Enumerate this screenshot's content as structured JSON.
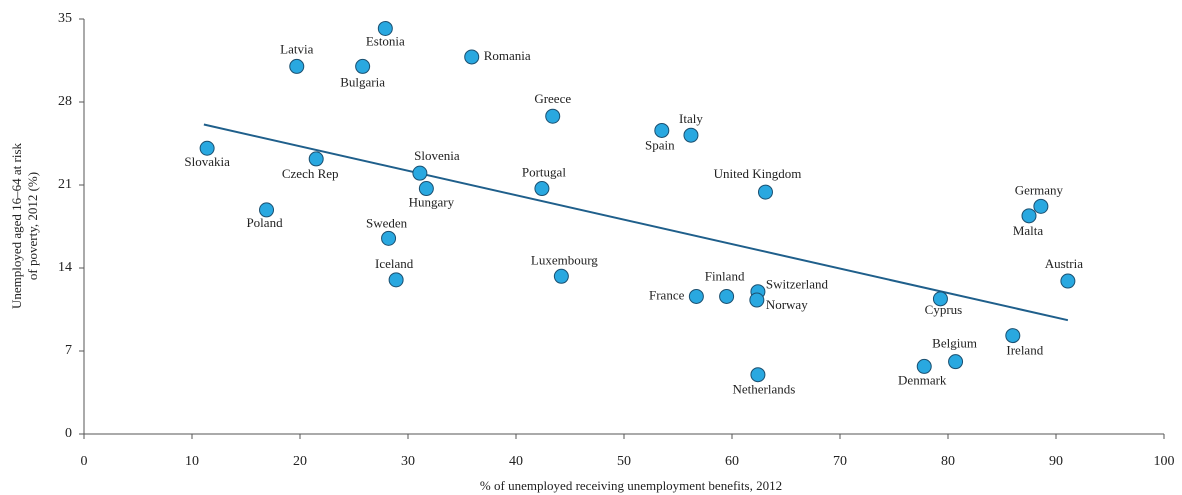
{
  "chart_data": {
    "type": "scatter",
    "xlabel": "% of unemployed receiving unemployment benefits, 2012",
    "ylabel": [
      "Unemployed aged 16–64 at risk",
      "of poverty, 2012 (%)"
    ],
    "xlim": [
      0,
      100
    ],
    "xticks": [
      0,
      10,
      20,
      30,
      40,
      50,
      60,
      70,
      80,
      90,
      100
    ],
    "ylim": [
      0,
      35
    ],
    "yticks": [
      0,
      7,
      14,
      21,
      28,
      35
    ],
    "color": "#29a8e0",
    "labels": [
      "Slovakia",
      "Latvia",
      "Estonia",
      "Bulgaria",
      "Romania",
      "Greece",
      "Italy",
      "Spain",
      "Czech Rep",
      "Slovenia",
      "Hungary",
      "Portugal",
      "United Kingdom",
      "Poland",
      "Sweden",
      "Germany",
      "Malta",
      "Iceland",
      "Luxembourg",
      "Austria",
      "France",
      "Finland",
      "Switzerland",
      "Norway",
      "Cyprus",
      "Ireland",
      "Belgium",
      "Denmark",
      "Netherlands"
    ],
    "x": [
      11.4,
      19.7,
      27.9,
      25.8,
      35.9,
      43.4,
      56.2,
      53.5,
      21.5,
      31.1,
      31.7,
      42.4,
      63.1,
      16.9,
      28.2,
      88.6,
      87.5,
      28.9,
      44.2,
      91.1,
      56.7,
      59.5,
      62.4,
      62.3,
      79.3,
      86.0,
      80.7,
      77.8,
      62.4
    ],
    "y": [
      24.1,
      31.0,
      34.2,
      31.0,
      31.8,
      26.8,
      25.2,
      25.6,
      23.2,
      22.0,
      20.7,
      20.7,
      20.4,
      18.9,
      16.5,
      19.2,
      18.4,
      13.0,
      13.3,
      12.9,
      11.6,
      11.6,
      12.0,
      11.3,
      11.4,
      8.3,
      6.1,
      5.7,
      5.0
    ],
    "trendline": {
      "color": "#1f5f8b",
      "x": [
        11.1,
        91.1
      ],
      "y": [
        26.1,
        9.6
      ]
    }
  }
}
